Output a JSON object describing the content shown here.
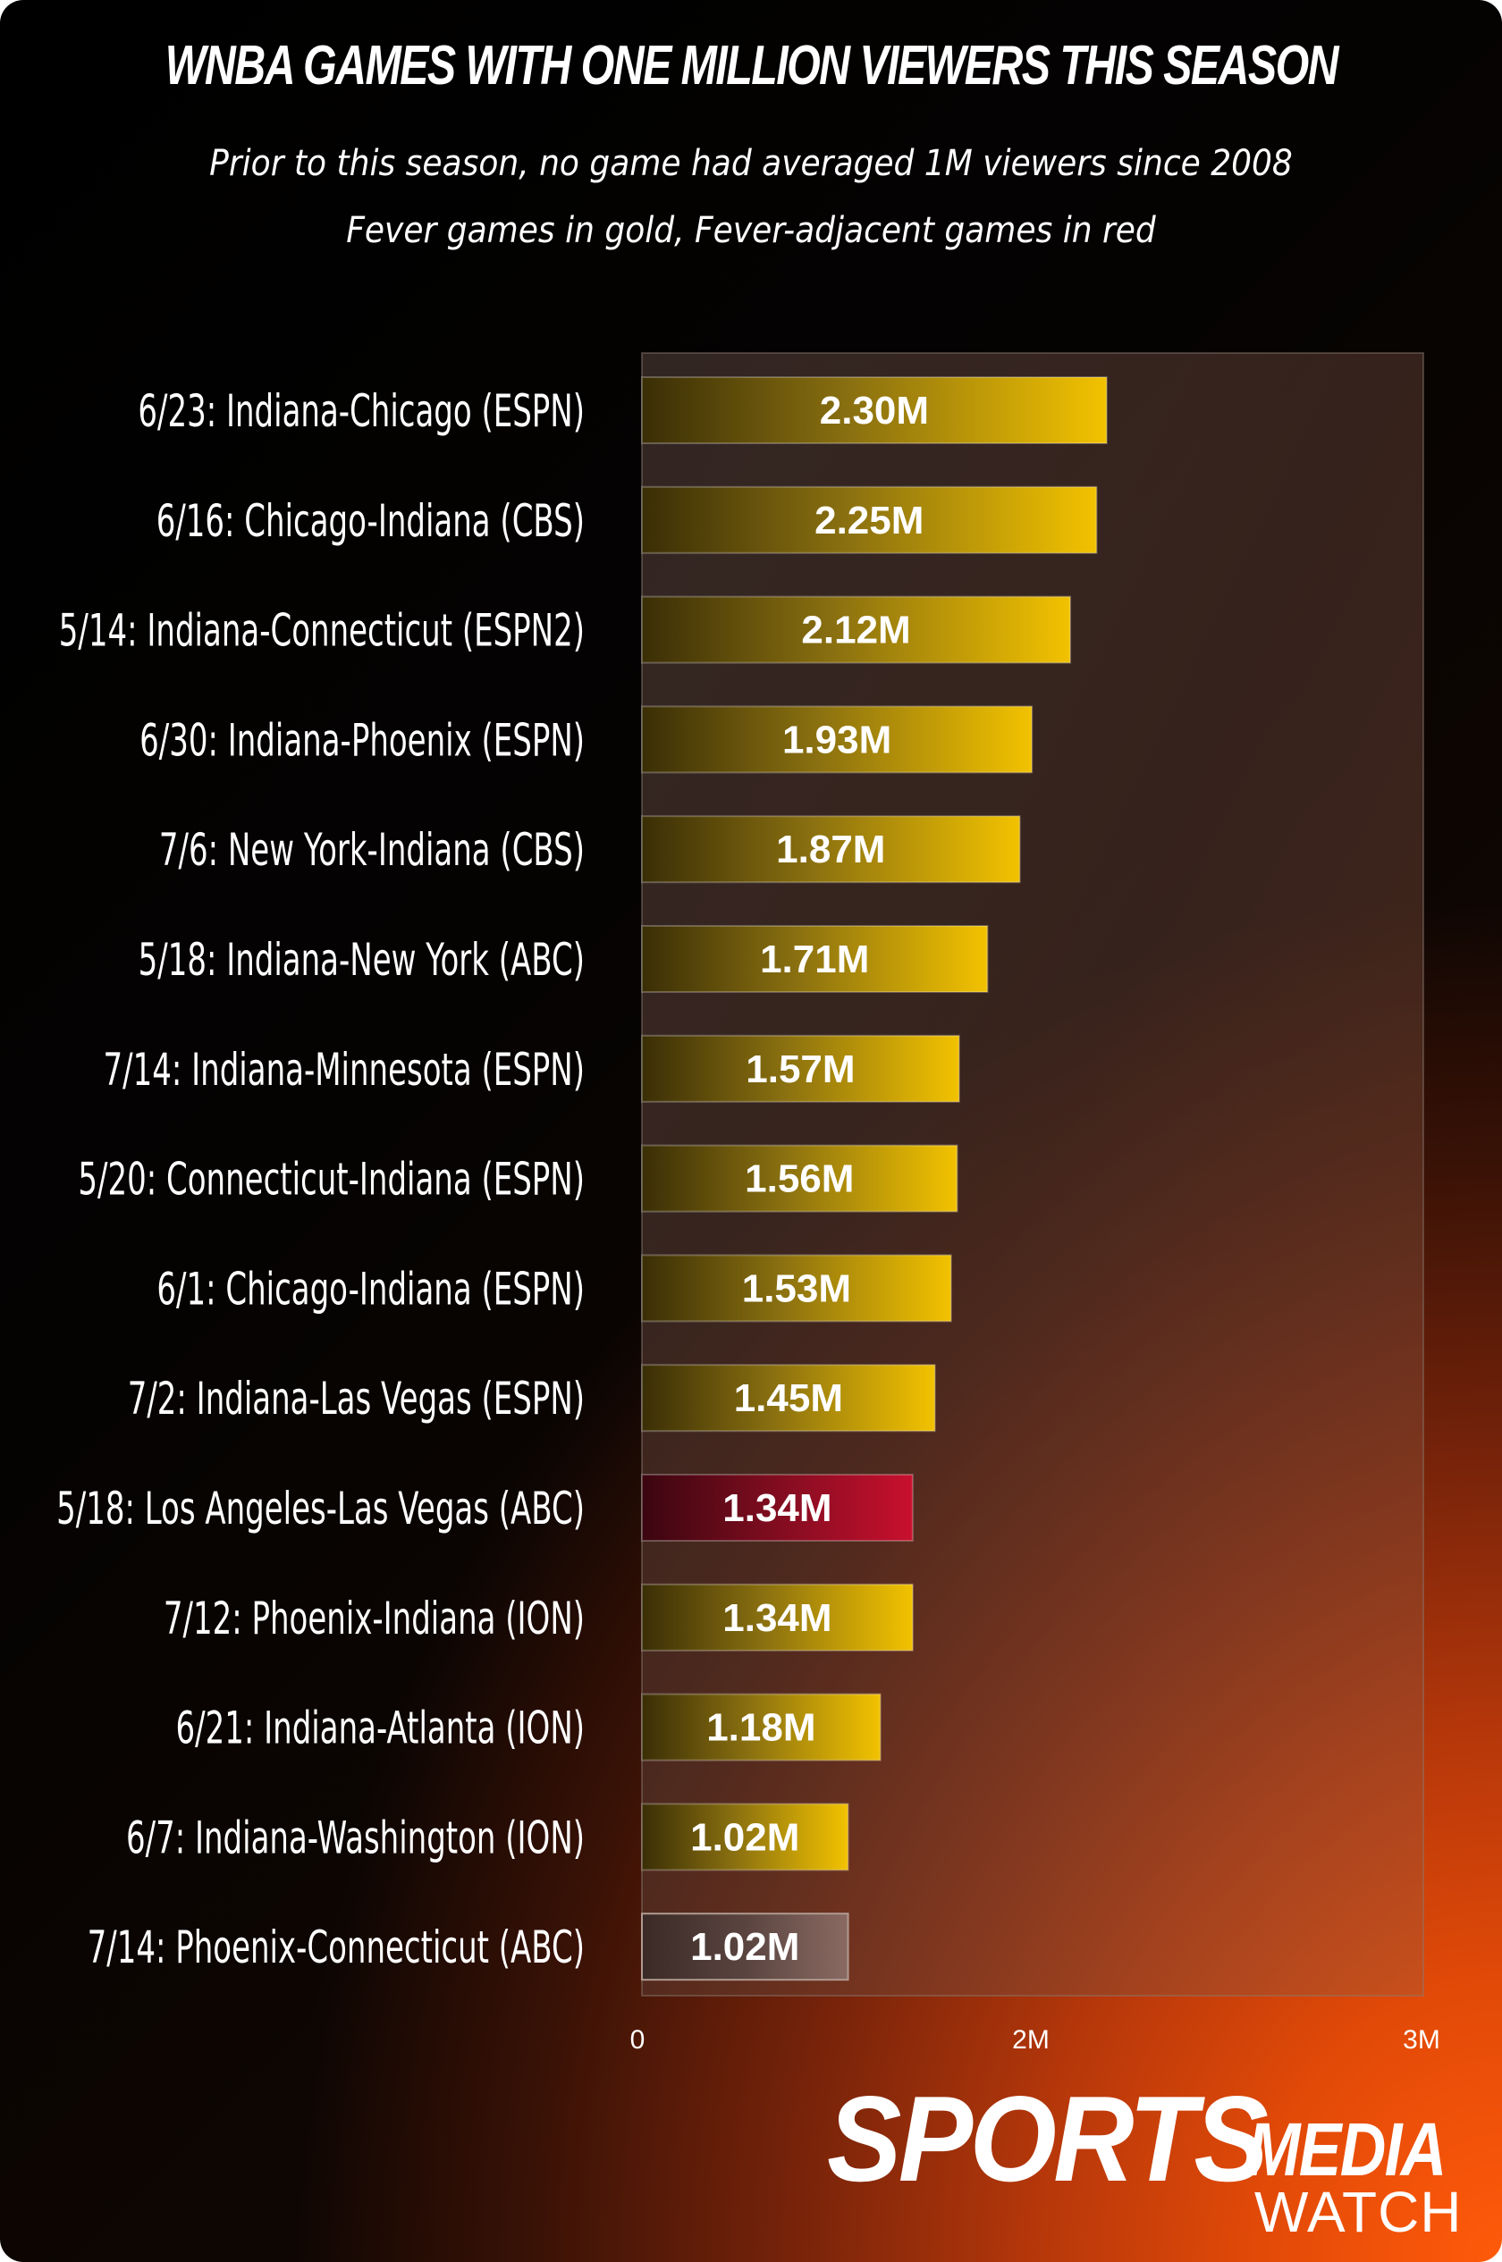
{
  "title": "WNBA GAMES WITH ONE MILLION VIEWERS THIS SEASON",
  "subtitle_line1": "Prior to this season, no game had averaged 1M viewers since 2008",
  "subtitle_line2": "Fever games in gold, Fever-adjacent games in red",
  "chart_data": {
    "type": "bar",
    "orientation": "horizontal",
    "categories": [
      "6/23: Indiana-Chicago (ESPN)",
      "6/16: Chicago-Indiana (CBS)",
      "5/14: Indiana-Connecticut (ESPN2)",
      "6/30: Indiana-Phoenix (ESPN)",
      "7/6: New York-Indiana (CBS)",
      "5/18: Indiana-New York (ABC)",
      "7/14: Indiana-Minnesota (ESPN)",
      "5/20: Connecticut-Indiana (ESPN)",
      "6/1: Chicago-Indiana (ESPN)",
      "7/2: Indiana-Las Vegas (ESPN)",
      "5/18: Los Angeles-Las Vegas (ABC)",
      "7/12: Phoenix-Indiana (ION)",
      "6/21: Indiana-Atlanta (ION)",
      "6/7: Indiana-Washington (ION)",
      "7/14: Phoenix-Connecticut (ABC)"
    ],
    "values": [
      2.3,
      2.25,
      2.12,
      1.93,
      1.87,
      1.71,
      1.57,
      1.56,
      1.53,
      1.45,
      1.34,
      1.34,
      1.18,
      1.02,
      1.02
    ],
    "value_labels": [
      "2.30M",
      "2.25M",
      "2.12M",
      "1.93M",
      "1.87M",
      "1.71M",
      "1.57M",
      "1.56M",
      "1.53M",
      "1.45M",
      "1.34M",
      "1.34M",
      "1.18M",
      "1.02M",
      "1.02M"
    ],
    "groups": [
      "gold",
      "gold",
      "gold",
      "gold",
      "gold",
      "gold",
      "gold",
      "gold",
      "gold",
      "gold",
      "red",
      "gold",
      "gold",
      "gold",
      "neutral"
    ],
    "group_colors": {
      "gold": "#f2c200",
      "red": "#c8102e",
      "neutral": "#7a5a50"
    },
    "x_ticks": [
      0,
      2,
      3
    ],
    "x_tick_labels": [
      "0",
      "2M",
      "3M"
    ],
    "xlim": [
      0,
      3
    ],
    "unit": "millions of viewers",
    "grid": false,
    "legend": "none"
  },
  "brand": {
    "sports": "SPORTS",
    "media": "MEDIA",
    "watch": "WATCH"
  }
}
